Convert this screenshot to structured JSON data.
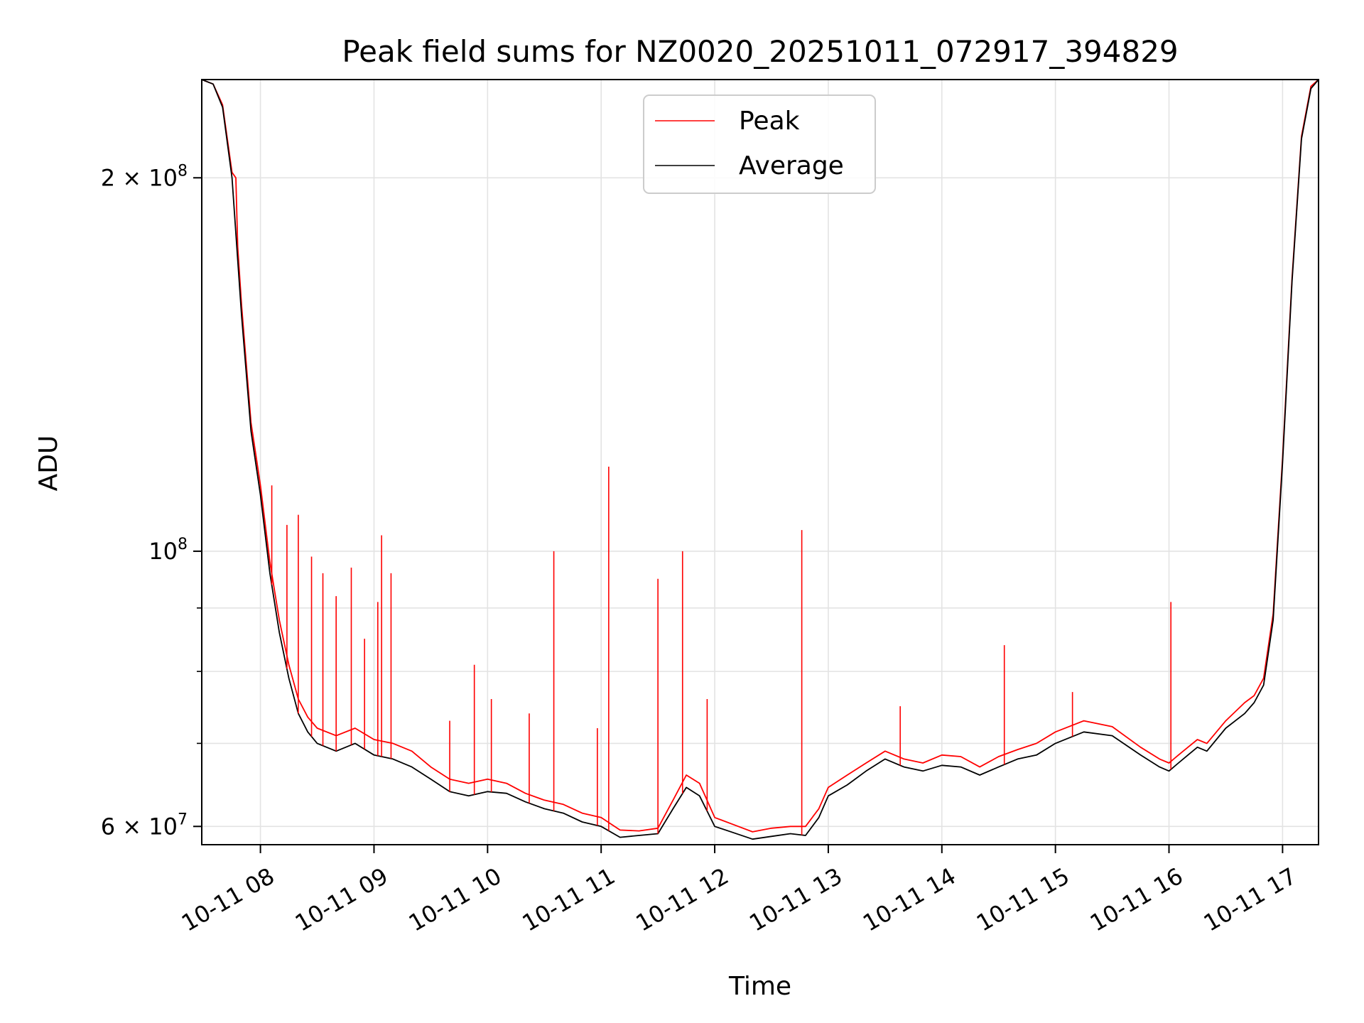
{
  "chart_data": {
    "type": "line",
    "title": "Peak field sums for NZ0020_20251011_072917_394829",
    "xlabel": "Time",
    "ylabel": "ADU",
    "x_axis": "time",
    "y_scale": "log",
    "xlim": [
      "2025-10-11T07:29",
      "2025-10-11T17:19"
    ],
    "ylim": [
      58000000,
      240000000
    ],
    "grid": true,
    "legend_position": "top-center",
    "x_ticks": [
      {
        "label": "10-11 08",
        "value": "2025-10-11T08:00"
      },
      {
        "label": "10-11 09",
        "value": "2025-10-11T09:00"
      },
      {
        "label": "10-11 10",
        "value": "2025-10-11T10:00"
      },
      {
        "label": "10-11 11",
        "value": "2025-10-11T11:00"
      },
      {
        "label": "10-11 12",
        "value": "2025-10-11T12:00"
      },
      {
        "label": "10-11 13",
        "value": "2025-10-11T13:00"
      },
      {
        "label": "10-11 14",
        "value": "2025-10-11T14:00"
      },
      {
        "label": "10-11 15",
        "value": "2025-10-11T15:00"
      },
      {
        "label": "10-11 16",
        "value": "2025-10-11T16:00"
      },
      {
        "label": "10-11 17",
        "value": "2025-10-11T17:00"
      }
    ],
    "y_ticks": [
      {
        "base": "6",
        "exp": "7",
        "value": 60000000
      },
      {
        "base": "",
        "exp": "8",
        "value": 100000000
      },
      {
        "base": "2",
        "exp": "8",
        "value": 200000000
      }
    ],
    "y_minor_ticks": [
      70000000,
      80000000,
      90000000
    ],
    "series": [
      {
        "name": "Average",
        "color": "#000000",
        "x": [
          "2025-10-11T07:29",
          "2025-10-11T07:35",
          "2025-10-11T07:40",
          "2025-10-11T07:45",
          "2025-10-11T07:50",
          "2025-10-11T07:55",
          "2025-10-11T08:00",
          "2025-10-11T08:05",
          "2025-10-11T08:10",
          "2025-10-11T08:15",
          "2025-10-11T08:20",
          "2025-10-11T08:25",
          "2025-10-11T08:30",
          "2025-10-11T08:40",
          "2025-10-11T08:50",
          "2025-10-11T09:00",
          "2025-10-11T09:10",
          "2025-10-11T09:20",
          "2025-10-11T09:30",
          "2025-10-11T09:40",
          "2025-10-11T09:50",
          "2025-10-11T10:00",
          "2025-10-11T10:10",
          "2025-10-11T10:20",
          "2025-10-11T10:30",
          "2025-10-11T10:40",
          "2025-10-11T10:50",
          "2025-10-11T11:00",
          "2025-10-11T11:10",
          "2025-10-11T11:20",
          "2025-10-11T11:30",
          "2025-10-11T11:38",
          "2025-10-11T11:45",
          "2025-10-11T11:52",
          "2025-10-11T12:00",
          "2025-10-11T12:10",
          "2025-10-11T12:20",
          "2025-10-11T12:30",
          "2025-10-11T12:40",
          "2025-10-11T12:48",
          "2025-10-11T12:55",
          "2025-10-11T13:00",
          "2025-10-11T13:10",
          "2025-10-11T13:20",
          "2025-10-11T13:30",
          "2025-10-11T13:40",
          "2025-10-11T13:50",
          "2025-10-11T14:00",
          "2025-10-11T14:10",
          "2025-10-11T14:20",
          "2025-10-11T14:30",
          "2025-10-11T14:40",
          "2025-10-11T14:50",
          "2025-10-11T15:00",
          "2025-10-11T15:15",
          "2025-10-11T15:30",
          "2025-10-11T15:45",
          "2025-10-11T15:55",
          "2025-10-11T16:00",
          "2025-10-11T16:05",
          "2025-10-11T16:10",
          "2025-10-11T16:15",
          "2025-10-11T16:20",
          "2025-10-11T16:30",
          "2025-10-11T16:40",
          "2025-10-11T16:45",
          "2025-10-11T16:50",
          "2025-10-11T16:55",
          "2025-10-11T17:00",
          "2025-10-11T17:05",
          "2025-10-11T17:10",
          "2025-10-11T17:15",
          "2025-10-11T17:19"
        ],
        "y": [
          240000000,
          238000000,
          228000000,
          200000000,
          155000000,
          125000000,
          111000000,
          96000000,
          86000000,
          79000000,
          74000000,
          71500000,
          70000000,
          69000000,
          70000000,
          68500000,
          68000000,
          67000000,
          65500000,
          64000000,
          63500000,
          64000000,
          63800000,
          62800000,
          62000000,
          61500000,
          60500000,
          60000000,
          58800000,
          59000000,
          59200000,
          62000000,
          64500000,
          63500000,
          60000000,
          59300000,
          58600000,
          58900000,
          59200000,
          59000000,
          61000000,
          63500000,
          64800000,
          66500000,
          68000000,
          67000000,
          66500000,
          67200000,
          67000000,
          66000000,
          67000000,
          68000000,
          68500000,
          70000000,
          71500000,
          71000000,
          68500000,
          67000000,
          66500000,
          67500000,
          68500000,
          69500000,
          69000000,
          72000000,
          74000000,
          75500000,
          78000000,
          88000000,
          118000000,
          165000000,
          215000000,
          236000000,
          240000000
        ]
      },
      {
        "name": "Peak",
        "color": "#ff0000",
        "x": [
          "2025-10-11T07:29",
          "2025-10-11T07:35",
          "2025-10-11T07:40",
          "2025-10-11T07:45",
          "2025-10-11T07:47",
          "2025-10-11T07:48",
          "2025-10-11T07:50",
          "2025-10-11T07:55",
          "2025-10-11T08:00",
          "2025-10-11T08:05",
          "2025-10-11T08:10",
          "2025-10-11T08:15",
          "2025-10-11T08:20",
          "2025-10-11T08:25",
          "2025-10-11T08:30",
          "2025-10-11T08:40",
          "2025-10-11T08:50",
          "2025-10-11T09:00",
          "2025-10-11T09:10",
          "2025-10-11T09:20",
          "2025-10-11T09:30",
          "2025-10-11T09:40",
          "2025-10-11T09:50",
          "2025-10-11T10:00",
          "2025-10-11T10:10",
          "2025-10-11T10:20",
          "2025-10-11T10:30",
          "2025-10-11T10:40",
          "2025-10-11T10:50",
          "2025-10-11T11:00",
          "2025-10-11T11:10",
          "2025-10-11T11:20",
          "2025-10-11T11:30",
          "2025-10-11T11:38",
          "2025-10-11T11:45",
          "2025-10-11T11:52",
          "2025-10-11T12:00",
          "2025-10-11T12:10",
          "2025-10-11T12:20",
          "2025-10-11T12:30",
          "2025-10-11T12:40",
          "2025-10-11T12:48",
          "2025-10-11T12:55",
          "2025-10-11T13:00",
          "2025-10-11T13:10",
          "2025-10-11T13:20",
          "2025-10-11T13:30",
          "2025-10-11T13:40",
          "2025-10-11T13:50",
          "2025-10-11T14:00",
          "2025-10-11T14:10",
          "2025-10-11T14:20",
          "2025-10-11T14:30",
          "2025-10-11T14:40",
          "2025-10-11T14:50",
          "2025-10-11T15:00",
          "2025-10-11T15:15",
          "2025-10-11T15:30",
          "2025-10-11T15:45",
          "2025-10-11T15:55",
          "2025-10-11T16:00",
          "2025-10-11T16:05",
          "2025-10-11T16:10",
          "2025-10-11T16:15",
          "2025-10-11T16:20",
          "2025-10-11T16:30",
          "2025-10-11T16:40",
          "2025-10-11T16:45",
          "2025-10-11T16:50",
          "2025-10-11T16:55",
          "2025-10-11T17:00",
          "2025-10-11T17:05",
          "2025-10-11T17:10",
          "2025-10-11T17:15",
          "2025-10-11T17:19"
        ],
        "y": [
          240000000,
          238000000,
          229000000,
          202000000,
          200000000,
          176000000,
          158000000,
          127000000,
          113000000,
          98000000,
          88000000,
          81000000,
          76000000,
          73500000,
          72000000,
          71000000,
          72000000,
          70500000,
          70000000,
          69000000,
          67000000,
          65500000,
          65000000,
          65500000,
          65000000,
          63800000,
          63000000,
          62500000,
          61500000,
          61000000,
          59600000,
          59500000,
          59800000,
          63000000,
          66000000,
          65000000,
          61000000,
          60200000,
          59400000,
          59800000,
          60000000,
          60000000,
          62000000,
          64500000,
          66000000,
          67500000,
          69000000,
          68000000,
          67500000,
          68500000,
          68300000,
          67000000,
          68300000,
          69200000,
          70000000,
          71500000,
          73000000,
          72200000,
          69500000,
          68000000,
          67500000,
          68500000,
          69500000,
          70500000,
          70000000,
          73000000,
          75500000,
          76500000,
          79000000,
          89000000,
          119000000,
          166000000,
          216000000,
          237000000,
          240000000
        ],
        "spikes": [
          {
            "x": "2025-10-11T08:06",
            "y": 113000000
          },
          {
            "x": "2025-10-11T08:14",
            "y": 105000000
          },
          {
            "x": "2025-10-11T08:20",
            "y": 107000000
          },
          {
            "x": "2025-10-11T08:27",
            "y": 99000000
          },
          {
            "x": "2025-10-11T08:33",
            "y": 96000000
          },
          {
            "x": "2025-10-11T08:40",
            "y": 92000000
          },
          {
            "x": "2025-10-11T08:48",
            "y": 97000000
          },
          {
            "x": "2025-10-11T08:55",
            "y": 85000000
          },
          {
            "x": "2025-10-11T09:02",
            "y": 91000000
          },
          {
            "x": "2025-10-11T09:04",
            "y": 103000000
          },
          {
            "x": "2025-10-11T09:09",
            "y": 96000000
          },
          {
            "x": "2025-10-11T09:40",
            "y": 73000000
          },
          {
            "x": "2025-10-11T09:53",
            "y": 81000000
          },
          {
            "x": "2025-10-11T10:02",
            "y": 76000000
          },
          {
            "x": "2025-10-11T10:22",
            "y": 74000000
          },
          {
            "x": "2025-10-11T10:35",
            "y": 100000000
          },
          {
            "x": "2025-10-11T10:58",
            "y": 72000000
          },
          {
            "x": "2025-10-11T11:04",
            "y": 117000000
          },
          {
            "x": "2025-10-11T11:30",
            "y": 95000000
          },
          {
            "x": "2025-10-11T11:43",
            "y": 100000000
          },
          {
            "x": "2025-10-11T11:56",
            "y": 76000000
          },
          {
            "x": "2025-10-11T12:46",
            "y": 104000000
          },
          {
            "x": "2025-10-11T13:38",
            "y": 75000000
          },
          {
            "x": "2025-10-11T14:33",
            "y": 84000000
          },
          {
            "x": "2025-10-11T15:09",
            "y": 77000000
          },
          {
            "x": "2025-10-11T16:01",
            "y": 91000000
          }
        ]
      }
    ]
  }
}
